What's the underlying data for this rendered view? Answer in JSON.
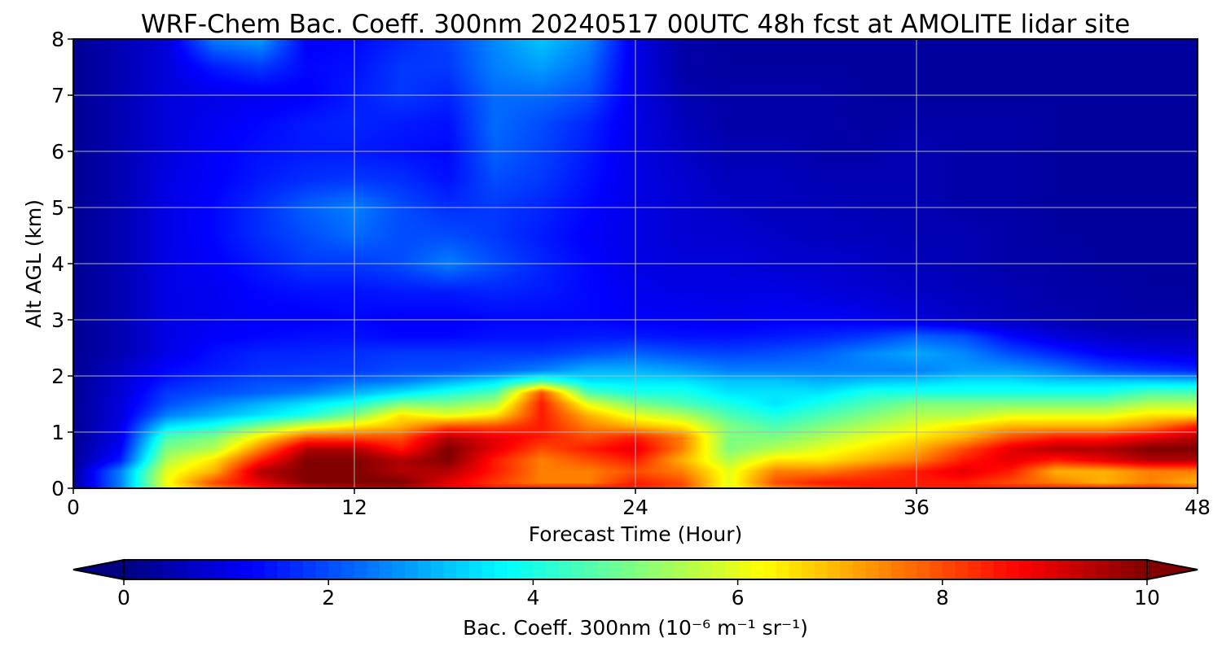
{
  "chart_data": {
    "type": "heatmap",
    "title": "WRF-Chem Bac. Coeff. 300nm  20240517 00UTC 48h fcst at AMOLITE lidar site",
    "xlabel": "Forecast Time (Hour)",
    "ylabel": "Alt AGL (km)",
    "xlim": [
      0,
      48
    ],
    "ylim": [
      0,
      8
    ],
    "xticks": [
      0,
      12,
      24,
      36,
      48
    ],
    "yticks": [
      0,
      1,
      2,
      3,
      4,
      5,
      6,
      7,
      8
    ],
    "grid": true,
    "colormap": "jet",
    "colorbar": {
      "label": "Bac. Coeff. 300nm  (10⁻⁶ m⁻¹ sr⁻¹)",
      "range": [
        0,
        10
      ],
      "ticks": [
        0,
        2,
        4,
        6,
        8,
        10
      ],
      "extend": "both",
      "orientation": "horizontal"
    },
    "x": [
      0,
      2,
      4,
      6,
      8,
      10,
      12,
      14,
      16,
      18,
      20,
      22,
      24,
      26,
      28,
      30,
      32,
      34,
      36,
      38,
      40,
      42,
      44,
      46,
      48
    ],
    "y": [
      0.0,
      0.1,
      0.3,
      0.5,
      0.7,
      0.9,
      1.1,
      1.3,
      1.5,
      1.7,
      1.9,
      2.1,
      2.4,
      2.7,
      3.0,
      3.5,
      4.0,
      4.5,
      5.0,
      5.5,
      6.0,
      6.5,
      7.0,
      7.5,
      8.0
    ],
    "values": [
      [
        0.3,
        2.5,
        6.0,
        7.5,
        8.5,
        9.0,
        9.5,
        9.5,
        9.0,
        8.5,
        8.5,
        8.5,
        8.5,
        8.0,
        6.0,
        7.5,
        8.0,
        8.5,
        8.5,
        8.5,
        8.5,
        8.5,
        8.5,
        8.5,
        8.0
      ],
      [
        0.3,
        2.5,
        6.2,
        8.0,
        9.0,
        10.0,
        10.0,
        10.0,
        9.0,
        8.2,
        7.5,
        7.5,
        8.5,
        8.0,
        6.0,
        8.0,
        8.5,
        8.5,
        8.5,
        8.5,
        8.0,
        7.5,
        7.0,
        7.5,
        7.0
      ],
      [
        0.3,
        2.5,
        6.0,
        7.0,
        9.5,
        10.0,
        10.0,
        9.5,
        9.5,
        8.5,
        7.5,
        7.5,
        8.0,
        7.5,
        6.0,
        7.5,
        7.5,
        8.0,
        8.5,
        9.0,
        8.5,
        7.0,
        7.0,
        7.5,
        7.5
      ],
      [
        0.2,
        1.5,
        5.5,
        6.5,
        8.5,
        10.0,
        10.0,
        9.5,
        10.0,
        8.5,
        7.5,
        8.0,
        8.5,
        7.0,
        5.5,
        6.5,
        6.5,
        7.0,
        7.5,
        8.5,
        9.0,
        8.5,
        9.0,
        9.5,
        9.5
      ],
      [
        0.2,
        1.2,
        5.0,
        5.5,
        7.5,
        9.5,
        9.5,
        8.5,
        10.0,
        9.0,
        8.0,
        8.5,
        9.0,
        7.5,
        5.0,
        5.5,
        6.0,
        6.5,
        7.0,
        8.0,
        9.0,
        9.5,
        9.5,
        10.0,
        10.0
      ],
      [
        0.2,
        1.0,
        4.5,
        5.0,
        6.5,
        8.0,
        8.0,
        8.0,
        9.5,
        9.0,
        8.5,
        8.0,
        8.5,
        7.5,
        5.0,
        5.0,
        5.5,
        6.0,
        6.5,
        7.0,
        8.0,
        8.5,
        8.5,
        9.0,
        9.5
      ],
      [
        0.2,
        1.0,
        3.5,
        4.0,
        5.0,
        6.0,
        6.5,
        7.0,
        8.0,
        8.0,
        8.5,
        7.5,
        7.0,
        6.5,
        5.0,
        4.5,
        5.0,
        5.5,
        6.0,
        6.5,
        7.0,
        7.0,
        7.0,
        7.5,
        8.5
      ],
      [
        0.2,
        0.9,
        2.5,
        3.0,
        3.5,
        4.0,
        5.0,
        6.5,
        6.0,
        6.5,
        8.5,
        7.0,
        6.0,
        5.5,
        4.5,
        4.0,
        4.5,
        5.0,
        5.5,
        5.5,
        6.0,
        6.0,
        6.0,
        6.5,
        6.5
      ],
      [
        0.2,
        0.9,
        2.0,
        2.5,
        3.0,
        3.5,
        4.0,
        5.0,
        5.0,
        5.5,
        8.5,
        6.0,
        5.0,
        4.5,
        4.0,
        3.5,
        4.0,
        4.5,
        5.0,
        5.0,
        5.0,
        5.0,
        5.0,
        5.5,
        5.5
      ],
      [
        0.2,
        0.8,
        1.8,
        2.0,
        2.2,
        2.5,
        3.0,
        3.5,
        4.0,
        4.5,
        8.0,
        4.5,
        4.0,
        4.0,
        3.5,
        3.5,
        3.5,
        4.0,
        4.0,
        4.0,
        4.0,
        4.0,
        4.0,
        4.5,
        4.5
      ],
      [
        0.2,
        0.8,
        1.5,
        1.8,
        2.0,
        2.0,
        2.3,
        2.5,
        3.0,
        3.5,
        4.5,
        3.5,
        3.5,
        3.5,
        3.2,
        3.2,
        3.0,
        3.2,
        3.3,
        3.5,
        3.5,
        3.3,
        3.3,
        3.3,
        3.2
      ],
      [
        0.2,
        0.7,
        1.3,
        1.5,
        1.7,
        1.8,
        1.8,
        2.0,
        2.0,
        2.2,
        2.5,
        3.0,
        3.0,
        2.8,
        2.5,
        2.5,
        2.5,
        2.5,
        2.5,
        2.8,
        2.8,
        2.5,
        2.0,
        1.8,
        1.6
      ],
      [
        0.2,
        0.5,
        1.0,
        1.4,
        1.6,
        1.6,
        1.7,
        1.8,
        1.8,
        1.8,
        1.8,
        2.0,
        2.2,
        2.0,
        1.9,
        2.0,
        2.2,
        2.6,
        2.9,
        2.6,
        2.0,
        1.6,
        1.2,
        1.0,
        0.9
      ],
      [
        0.2,
        0.5,
        1.0,
        1.2,
        1.3,
        1.4,
        1.4,
        1.3,
        1.3,
        1.4,
        1.4,
        1.5,
        1.5,
        1.4,
        1.4,
        1.5,
        1.6,
        1.8,
        2.2,
        2.0,
        1.3,
        0.9,
        0.7,
        0.6,
        0.6
      ],
      [
        0.2,
        0.5,
        1.0,
        1.1,
        1.2,
        1.2,
        1.3,
        1.2,
        1.2,
        1.3,
        1.3,
        1.3,
        1.2,
        1.2,
        1.1,
        1.2,
        1.2,
        1.1,
        0.9,
        0.7,
        0.6,
        0.5,
        0.4,
        0.4,
        0.4
      ],
      [
        0.2,
        0.5,
        1.0,
        1.1,
        1.3,
        1.4,
        1.4,
        1.5,
        1.5,
        1.6,
        1.5,
        1.3,
        1.1,
        1.0,
        1.0,
        1.0,
        0.9,
        0.8,
        0.7,
        0.6,
        0.5,
        0.4,
        0.4,
        0.3,
        0.3
      ],
      [
        0.2,
        0.5,
        1.0,
        1.2,
        1.5,
        1.8,
        1.8,
        2.0,
        2.5,
        2.0,
        1.6,
        1.3,
        1.0,
        0.9,
        0.9,
        0.8,
        0.8,
        0.7,
        0.6,
        0.5,
        0.4,
        0.4,
        0.3,
        0.3,
        0.3
      ],
      [
        0.2,
        0.5,
        1.0,
        1.3,
        1.7,
        2.0,
        2.3,
        2.0,
        2.0,
        1.8,
        1.5,
        1.2,
        1.0,
        0.8,
        0.8,
        0.7,
        0.6,
        0.6,
        0.5,
        0.5,
        0.4,
        0.3,
        0.3,
        0.3,
        0.3
      ],
      [
        0.2,
        0.5,
        1.0,
        1.3,
        1.7,
        2.2,
        2.5,
        2.0,
        1.7,
        1.8,
        1.6,
        1.3,
        1.0,
        0.8,
        0.7,
        0.6,
        0.6,
        0.5,
        0.5,
        0.4,
        0.4,
        0.3,
        0.3,
        0.3,
        0.3
      ],
      [
        0.2,
        0.5,
        1.0,
        1.2,
        1.5,
        1.7,
        1.8,
        1.7,
        1.4,
        2.0,
        1.8,
        1.4,
        1.0,
        0.8,
        0.6,
        0.6,
        0.5,
        0.5,
        0.5,
        0.4,
        0.4,
        0.3,
        0.3,
        0.3,
        0.3
      ],
      [
        0.2,
        0.5,
        0.9,
        1.2,
        1.4,
        1.5,
        1.5,
        1.4,
        1.3,
        2.2,
        1.9,
        1.5,
        1.0,
        0.7,
        0.5,
        0.5,
        0.4,
        0.4,
        0.5,
        0.4,
        0.4,
        0.3,
        0.3,
        0.3,
        0.3
      ],
      [
        0.2,
        0.5,
        0.9,
        1.1,
        1.3,
        1.5,
        1.6,
        1.5,
        1.4,
        2.3,
        2.0,
        1.6,
        1.0,
        0.6,
        0.4,
        0.4,
        0.4,
        0.3,
        0.4,
        0.4,
        0.4,
        0.3,
        0.3,
        0.3,
        0.3
      ],
      [
        0.2,
        0.5,
        0.9,
        1.0,
        1.1,
        1.2,
        1.5,
        1.8,
        1.6,
        2.3,
        2.3,
        2.0,
        1.0,
        0.5,
        0.4,
        0.4,
        0.4,
        0.3,
        0.3,
        0.3,
        0.3,
        0.3,
        0.3,
        0.3,
        0.3
      ],
      [
        0.2,
        0.5,
        0.9,
        1.5,
        1.8,
        1.3,
        1.4,
        1.8,
        1.8,
        2.5,
        2.8,
        2.3,
        1.0,
        0.4,
        0.3,
        0.3,
        0.3,
        0.3,
        0.3,
        0.3,
        0.3,
        0.3,
        0.3,
        0.3,
        0.3
      ],
      [
        0.2,
        0.5,
        0.9,
        2.5,
        2.8,
        1.2,
        1.3,
        1.6,
        1.9,
        2.6,
        3.2,
        2.6,
        1.0,
        0.4,
        0.3,
        0.3,
        0.3,
        0.3,
        0.3,
        0.3,
        0.3,
        0.3,
        0.3,
        0.3,
        0.3
      ]
    ]
  }
}
